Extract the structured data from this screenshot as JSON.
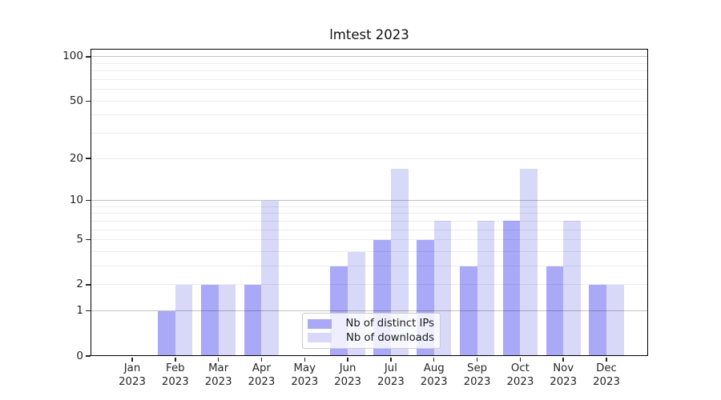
{
  "chart_data": {
    "type": "bar",
    "title": "lmtest 2023",
    "x_categories": [
      "Jan",
      "Feb",
      "Mar",
      "Apr",
      "May",
      "Jun",
      "Jul",
      "Aug",
      "Sep",
      "Oct",
      "Nov",
      "Dec"
    ],
    "x_year_label": "2023",
    "series": [
      {
        "name": "Nb of distinct IPs",
        "key": "distinct-ips",
        "color": "#a9a9f8",
        "values": [
          0,
          1,
          2,
          2,
          0,
          3,
          5,
          5,
          3,
          7,
          3,
          2
        ]
      },
      {
        "name": "Nb of downloads",
        "key": "downloads",
        "color": "#d8d8f8",
        "values": [
          0,
          2,
          2,
          10,
          0,
          4,
          17,
          7,
          7,
          17,
          7,
          2
        ]
      }
    ],
    "yscale": "log1p",
    "ylim": [
      0,
      113
    ],
    "yticks_labeled": [
      0,
      1,
      2,
      5,
      10,
      20,
      50,
      100
    ],
    "yticks_major_grid": [
      1,
      10,
      100
    ],
    "yticks_minor_grid": [
      2,
      3,
      4,
      5,
      6,
      7,
      8,
      9,
      20,
      30,
      40,
      50,
      60,
      70,
      80,
      90
    ],
    "grid": true,
    "legend_position": "lower-center"
  },
  "colors": {
    "background": "#ffffff",
    "grid_minor": "#ececec",
    "grid_major": "#c2c2c2",
    "spine": "#000000",
    "tick": "#262626",
    "text": "#1a1a1a",
    "legend_border": "#cccccc"
  }
}
